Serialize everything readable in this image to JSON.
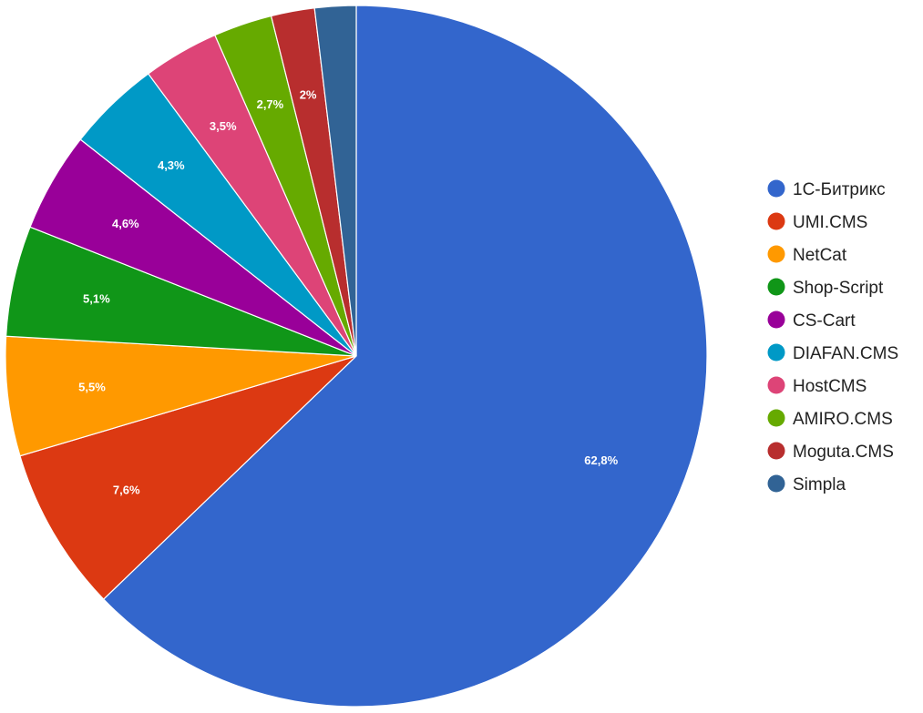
{
  "chart_data": {
    "type": "pie",
    "title": "",
    "start_angle_deg": 0,
    "direction": "clockwise",
    "legend_position": "right",
    "slices": [
      {
        "label": "1C-Битрикс",
        "value": 62.8,
        "value_label": "62,8%",
        "color": "#3366cc"
      },
      {
        "label": "UMI.CMS",
        "value": 7.6,
        "value_label": "7,6%",
        "color": "#dc3912"
      },
      {
        "label": "NetCat",
        "value": 5.5,
        "value_label": "5,5%",
        "color": "#ff9900"
      },
      {
        "label": "Shop-Script",
        "value": 5.1,
        "value_label": "5,1%",
        "color": "#109618"
      },
      {
        "label": "CS-Cart",
        "value": 4.6,
        "value_label": "4,6%",
        "color": "#990099"
      },
      {
        "label": "DIAFAN.CMS",
        "value": 4.3,
        "value_label": "4,3%",
        "color": "#0099c6"
      },
      {
        "label": "HostCMS",
        "value": 3.5,
        "value_label": "3,5%",
        "color": "#dd4477"
      },
      {
        "label": "AMIRO.CMS",
        "value": 2.7,
        "value_label": "2,7%",
        "color": "#66aa00"
      },
      {
        "label": "Moguta.CMS",
        "value": 2.0,
        "value_label": "2%",
        "color": "#b82e2e"
      },
      {
        "label": "Simpla",
        "value": 1.9,
        "value_label": "",
        "color": "#316395"
      }
    ]
  }
}
